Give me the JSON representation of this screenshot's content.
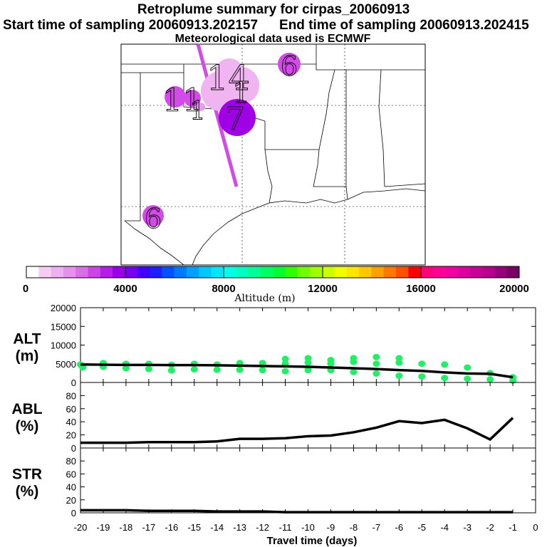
{
  "header": {
    "title": "Retroplume summary for cirpas_20060913",
    "start_label": "Start time of sampling 20060913.202157",
    "end_label": "End time of sampling 20060913.202415",
    "met_label": "Meteorological data used is ECMWF"
  },
  "map": {
    "plume_labels": [
      {
        "text": "14",
        "color": "#f0b4f0"
      },
      {
        "text": "11",
        "color": "#d24be6"
      },
      {
        "text": "1",
        "color": "#f0b4f0"
      },
      {
        "text": "1",
        "color": "#e2a0ea"
      },
      {
        "text": "7",
        "color": "#a000e6"
      },
      {
        "text": "6",
        "color": "#d24be6"
      },
      {
        "text": "6",
        "color": "#d24be6"
      }
    ]
  },
  "colorbar": {
    "axis_label": "Altitude (m)",
    "tick_labels": [
      "0",
      "4000",
      "8000",
      "12000",
      "16000",
      "20000"
    ],
    "colors": [
      "#ffffff",
      "#f4ccf4",
      "#eeb0f0",
      "#e692ec",
      "#da6ee6",
      "#cc44e6",
      "#b41ee6",
      "#9a00e6",
      "#7800f0",
      "#4400ff",
      "#1e1eff",
      "#0050ff",
      "#0078ff",
      "#00a0ff",
      "#00c8ff",
      "#00e6ff",
      "#00ffe6",
      "#00ffc0",
      "#00ff96",
      "#00ff64",
      "#00ff32",
      "#30ff00",
      "#70ff00",
      "#a0ff00",
      "#ccff00",
      "#f0ff00",
      "#ffe600",
      "#ffc800",
      "#ffa000",
      "#ff7800",
      "#ff5000",
      "#ff0000",
      "#ff0078",
      "#ff0096",
      "#f000a0",
      "#dc00a0",
      "#c80096",
      "#b4008c",
      "#960078",
      "#780064"
    ]
  },
  "chart_data": [
    {
      "type": "line",
      "title": "ALT",
      "ylabel": "ALT (m)",
      "label_line1": "ALT",
      "label_line2": "(m)",
      "ylim": [
        0,
        20000
      ],
      "yticks": [
        "0",
        "5000",
        "10000",
        "15000",
        "20000"
      ],
      "x": [
        -20,
        -19,
        -18,
        -17,
        -16,
        -15,
        -14,
        -13,
        -12,
        -11,
        -10,
        -9,
        -8,
        -7,
        -6,
        -5,
        -4,
        -3,
        -2,
        -1
      ],
      "values": [
        4800,
        4750,
        4700,
        4700,
        4650,
        4650,
        4600,
        4500,
        4400,
        4300,
        4200,
        4000,
        3800,
        3600,
        3300,
        3100,
        2700,
        2400,
        2300,
        1400
      ],
      "dots": [
        {
          "x": -20,
          "y": 4800
        },
        {
          "x": -19.9,
          "y": 4000
        },
        {
          "x": -19,
          "y": 5200
        },
        {
          "x": -19,
          "y": 4200
        },
        {
          "x": -18,
          "y": 5000
        },
        {
          "x": -18,
          "y": 3800
        },
        {
          "x": -17,
          "y": 5000
        },
        {
          "x": -17,
          "y": 3600
        },
        {
          "x": -16,
          "y": 4700
        },
        {
          "x": -16,
          "y": 3200
        },
        {
          "x": -15,
          "y": 5000
        },
        {
          "x": -15,
          "y": 3500
        },
        {
          "x": -14,
          "y": 4800
        },
        {
          "x": -14,
          "y": 3400
        },
        {
          "x": -13,
          "y": 5200
        },
        {
          "x": -13,
          "y": 3400
        },
        {
          "x": -12,
          "y": 5200
        },
        {
          "x": -12,
          "y": 3300
        },
        {
          "x": -11,
          "y": 5000
        },
        {
          "x": -11,
          "y": 3000
        },
        {
          "x": -11,
          "y": 6300
        },
        {
          "x": -10,
          "y": 5300
        },
        {
          "x": -10,
          "y": 3300
        },
        {
          "x": -10,
          "y": 6500
        },
        {
          "x": -9,
          "y": 5000
        },
        {
          "x": -9,
          "y": 3300
        },
        {
          "x": -9,
          "y": 6000
        },
        {
          "x": -8,
          "y": 5500
        },
        {
          "x": -8,
          "y": 2800
        },
        {
          "x": -8,
          "y": 6500
        },
        {
          "x": -7,
          "y": 5000
        },
        {
          "x": -7,
          "y": 2400
        },
        {
          "x": -7,
          "y": 6800
        },
        {
          "x": -6,
          "y": 5300
        },
        {
          "x": -6,
          "y": 1800
        },
        {
          "x": -6,
          "y": 6500
        },
        {
          "x": -5,
          "y": 5000
        },
        {
          "x": -5,
          "y": 1600
        },
        {
          "x": -4,
          "y": 4800
        },
        {
          "x": -4,
          "y": 1200
        },
        {
          "x": -3,
          "y": 4000
        },
        {
          "x": -3,
          "y": 1000
        },
        {
          "x": -2,
          "y": 2500
        },
        {
          "x": -2,
          "y": 800
        },
        {
          "x": -1,
          "y": 1400
        },
        {
          "x": -1,
          "y": 500
        }
      ]
    },
    {
      "type": "line",
      "title": "ABL",
      "ylabel": "ABL (%)",
      "label_line1": "ABL",
      "label_line2": "(%)",
      "ylim": [
        0,
        100
      ],
      "yticks": [
        "0",
        "20",
        "40",
        "60",
        "80"
      ],
      "x": [
        -20,
        -19,
        -18,
        -17,
        -16,
        -15,
        -14,
        -13,
        -12,
        -11,
        -10,
        -9,
        -8,
        -7,
        -6,
        -5,
        -4,
        -3,
        -2,
        -1
      ],
      "values": [
        8,
        8,
        8,
        9,
        9,
        9,
        10,
        14,
        14,
        15,
        18,
        19,
        24,
        31,
        41,
        38,
        43,
        30,
        13,
        46
      ]
    },
    {
      "type": "line",
      "title": "STR",
      "ylabel": "STR (%)",
      "label_line1": "STR",
      "label_line2": "(%)",
      "ylim": [
        0,
        100
      ],
      "yticks": [
        "0",
        "20",
        "40",
        "60",
        "80"
      ],
      "x": [
        -20,
        -19,
        -18,
        -17,
        -16,
        -15,
        -14,
        -13,
        -12,
        -11,
        -10,
        -9,
        -8,
        -7,
        -6,
        -5,
        -4,
        -3,
        -2,
        -1
      ],
      "values": [
        4,
        4,
        4,
        3,
        3,
        3,
        2,
        2,
        2,
        1,
        1,
        1,
        1,
        1,
        1,
        1,
        1,
        1,
        1,
        1
      ]
    }
  ],
  "xaxis": {
    "label": "Travel time (days)",
    "ticks": [
      "-20",
      "-19",
      "-18",
      "-17",
      "-16",
      "-15",
      "-14",
      "-13",
      "-12",
      "-11",
      "-10",
      "-9",
      "-8",
      "-7",
      "-6",
      "-5",
      "-4",
      "-3",
      "-2",
      "-1",
      "0"
    ]
  }
}
